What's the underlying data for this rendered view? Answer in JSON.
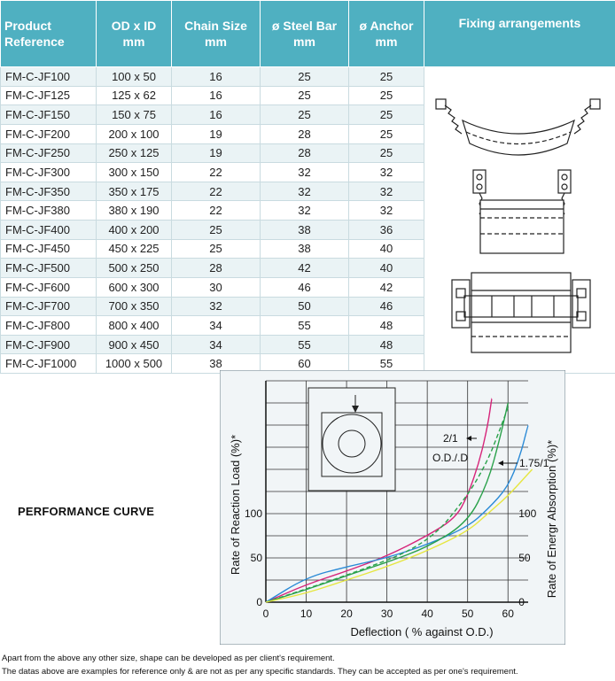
{
  "table": {
    "headers": [
      {
        "line1": "Product",
        "line2": "Reference"
      },
      {
        "line1": "OD x ID",
        "line2": "mm"
      },
      {
        "line1": "Chain Size",
        "line2": "mm"
      },
      {
        "line1": "ø Steel Bar",
        "line2": "mm"
      },
      {
        "line1": "ø Anchor",
        "line2": "mm"
      },
      {
        "line1": "Fixing arrangements",
        "line2": ""
      }
    ],
    "rows": [
      {
        "ref": "FM-C-JF100",
        "od_id": "100 x 50",
        "chain": "16",
        "bar": "25",
        "anchor": "25"
      },
      {
        "ref": "FM-C-JF125",
        "od_id": "125 x 62",
        "chain": "16",
        "bar": "25",
        "anchor": "25"
      },
      {
        "ref": "FM-C-JF150",
        "od_id": "150 x 75",
        "chain": "16",
        "bar": "25",
        "anchor": "25"
      },
      {
        "ref": "FM-C-JF200",
        "od_id": "200 x 100",
        "chain": "19",
        "bar": "28",
        "anchor": "25"
      },
      {
        "ref": "FM-C-JF250",
        "od_id": "250 x 125",
        "chain": "19",
        "bar": "28",
        "anchor": "25"
      },
      {
        "ref": "FM-C-JF300",
        "od_id": "300 x 150",
        "chain": "22",
        "bar": "32",
        "anchor": "32"
      },
      {
        "ref": "FM-C-JF350",
        "od_id": "350 x 175",
        "chain": "22",
        "bar": "32",
        "anchor": "32"
      },
      {
        "ref": "FM-C-JF380",
        "od_id": "380 x 190",
        "chain": "22",
        "bar": "32",
        "anchor": "32"
      },
      {
        "ref": "FM-C-JF400",
        "od_id": "400 x 200",
        "chain": "25",
        "bar": "38",
        "anchor": "36"
      },
      {
        "ref": "FM-C-JF450",
        "od_id": "450 x 225",
        "chain": "25",
        "bar": "38",
        "anchor": "40"
      },
      {
        "ref": "FM-C-JF500",
        "od_id": "500 x 250",
        "chain": "28",
        "bar": "42",
        "anchor": "40"
      },
      {
        "ref": "FM-C-JF600",
        "od_id": "600 x 300",
        "chain": "30",
        "bar": "46",
        "anchor": "42"
      },
      {
        "ref": "FM-C-JF700",
        "od_id": "700 x 350",
        "chain": "32",
        "bar": "50",
        "anchor": "46"
      },
      {
        "ref": "FM-C-JF800",
        "od_id": "800 x 400",
        "chain": "34",
        "bar": "55",
        "anchor": "48"
      },
      {
        "ref": "FM-C-JF900",
        "od_id": "900 x 450",
        "chain": "34",
        "bar": "55",
        "anchor": "48"
      },
      {
        "ref": "FM-C-JF1000",
        "od_id": "1000 x 500",
        "chain": "38",
        "bar": "60",
        "anchor": "55"
      }
    ]
  },
  "performance_title": "PERFORMANCE CURVE",
  "chart_data": {
    "type": "line",
    "xlabel": "Deflection ( % against O.D.)",
    "ylabel_left": "Rate of Reaction Load (%)*",
    "ylabel_right": "Rate of Energr Absorption (%)*",
    "xticks": [
      "0",
      "10",
      "20",
      "30",
      "40",
      "50",
      "60"
    ],
    "yticks_left": [
      "0",
      "50",
      "100"
    ],
    "yticks_right": [
      "0",
      "50",
      "100"
    ],
    "xlim": [
      0,
      65
    ],
    "ylim": [
      0,
      250
    ],
    "annotations": [
      "2/1",
      "O.D./.D",
      "1.75/1"
    ],
    "grid": true,
    "series": [
      {
        "color": "#d6257a",
        "dashed": false,
        "x": [
          0,
          10,
          20,
          30,
          40,
          47,
          50,
          53,
          55,
          56
        ],
        "y": [
          0,
          20,
          35,
          52,
          75,
          95,
          120,
          160,
          200,
          230
        ]
      },
      {
        "color": "#2a8ad6",
        "dashed": false,
        "x": [
          0,
          10,
          20,
          30,
          40,
          50,
          55,
          60,
          63,
          65
        ],
        "y": [
          0,
          28,
          40,
          50,
          65,
          85,
          105,
          130,
          165,
          200
        ]
      },
      {
        "color": "#29a14a",
        "dashed": false,
        "x": [
          0,
          10,
          20,
          30,
          40,
          50,
          55,
          58,
          60
        ],
        "y": [
          0,
          14,
          30,
          45,
          62,
          90,
          135,
          185,
          225
        ]
      },
      {
        "color": "#29a14a",
        "dashed": true,
        "x": [
          0,
          20,
          40,
          50,
          55,
          58,
          60
        ],
        "y": [
          0,
          30,
          65,
          120,
          160,
          195,
          220
        ]
      },
      {
        "color": "#e6e640",
        "dashed": false,
        "x": [
          0,
          10,
          20,
          30,
          40,
          50,
          55,
          60,
          64,
          66
        ],
        "y": [
          0,
          10,
          25,
          40,
          58,
          80,
          100,
          120,
          140,
          150
        ]
      }
    ]
  },
  "footnotes": [
    "Apart from the above any other size, shape can be developed as per client's requirement.",
    "The datas above are examples for reference only & are not as per any specific standards. They can be accepted as per one's requirement."
  ],
  "colors": {
    "header_bg": "#4fb0c1",
    "row_alt": "#eaf3f5"
  }
}
